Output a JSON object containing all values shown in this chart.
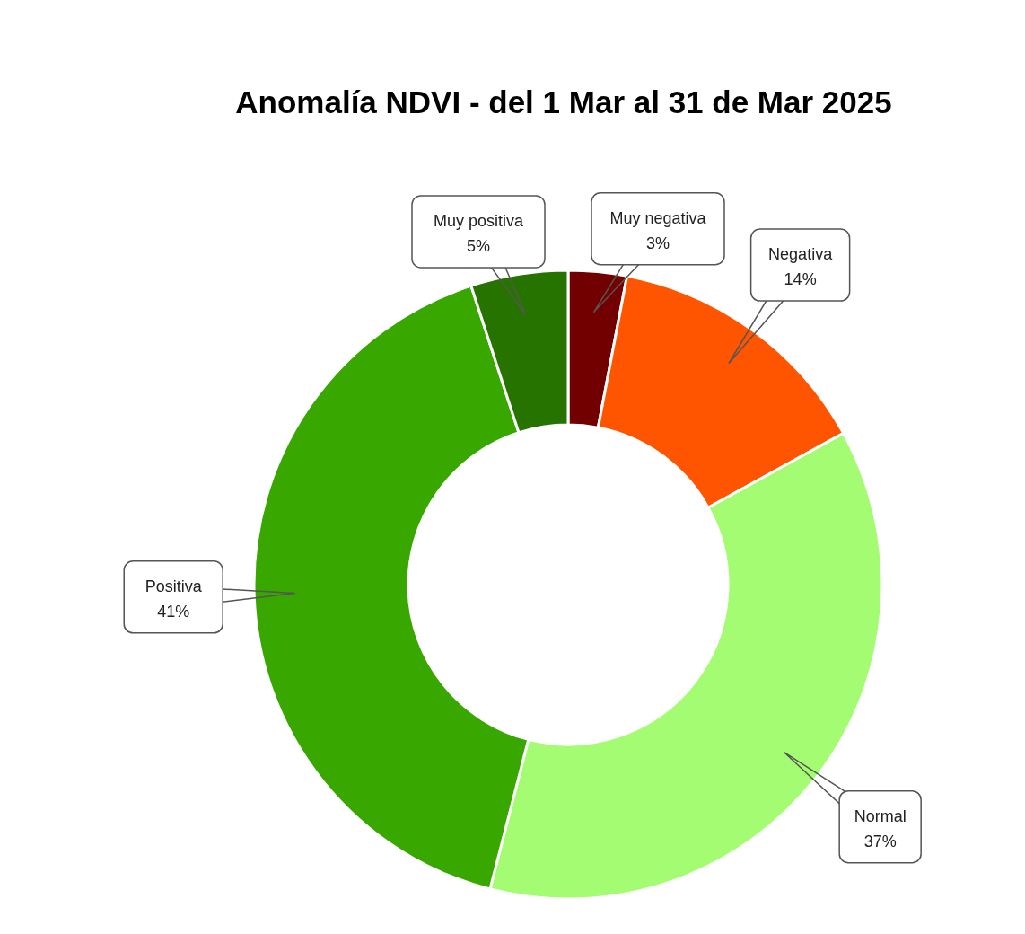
{
  "chart_data": {
    "type": "donut",
    "title": "Anomalía NDVI - del 1 Mar al 31 de Mar 2025",
    "categories": [
      "Muy negativa",
      "Negativa",
      "Normal",
      "Positiva",
      "Muy positiva"
    ],
    "values": [
      3,
      14,
      37,
      41,
      5
    ],
    "value_labels": [
      "3%",
      "14%",
      "37%",
      "41%",
      "5%"
    ],
    "colors": [
      "#730000",
      "#ff5500",
      "#a3fc72",
      "#38a800",
      "#267300"
    ],
    "legend": false
  }
}
